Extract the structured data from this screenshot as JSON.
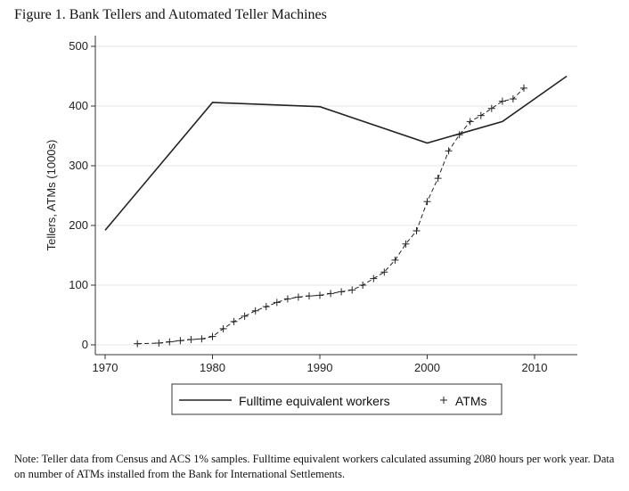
{
  "figure_title": "Figure 1. Bank Tellers and Automated Teller Machines",
  "note": "Note: Teller data from Census and ACS 1% samples. Fulltime equivalent workers calculated assuming 2080 hours per work year. Data on number of ATMs installed from the Bank for International Settlements.",
  "chart_data": {
    "type": "line",
    "title": "Figure 1. Bank Tellers and Automated Teller Machines",
    "xlabel": "",
    "ylabel": "Tellers, ATMs (1000s)",
    "xlim": [
      1970,
      2013
    ],
    "ylim": [
      0,
      500
    ],
    "x_ticks": [
      1970,
      1980,
      1990,
      2000,
      2010
    ],
    "y_ticks": [
      0,
      100,
      200,
      300,
      400,
      500
    ],
    "grid": true,
    "legend_position": "bottom",
    "series": [
      {
        "name": "Fulltime equivalent workers",
        "style": "solid-line",
        "color": "#222222",
        "x": [
          1970,
          1980,
          1990,
          2000,
          2007,
          2013
        ],
        "y": [
          192,
          406,
          399,
          338,
          374,
          450
        ]
      },
      {
        "name": "ATMs",
        "style": "dashed-line-with-plus-markers",
        "color": "#222222",
        "x": [
          1973,
          1975,
          1976,
          1977,
          1978,
          1979,
          1980,
          1981,
          1982,
          1983,
          1984,
          1985,
          1986,
          1987,
          1988,
          1989,
          1990,
          1991,
          1992,
          1993,
          1994,
          1995,
          1996,
          1997,
          1998,
          1999,
          2000,
          2001,
          2002,
          2003,
          2004,
          2005,
          2006,
          2007,
          2008,
          2009
        ],
        "y": [
          2,
          3,
          5,
          7,
          9,
          10,
          14,
          27,
          39,
          48,
          57,
          64,
          71,
          77,
          80,
          82,
          83,
          86,
          89,
          92,
          100,
          111,
          122,
          142,
          169,
          191,
          240,
          279,
          325,
          352,
          374,
          384,
          396,
          408,
          412,
          430
        ]
      }
    ]
  }
}
